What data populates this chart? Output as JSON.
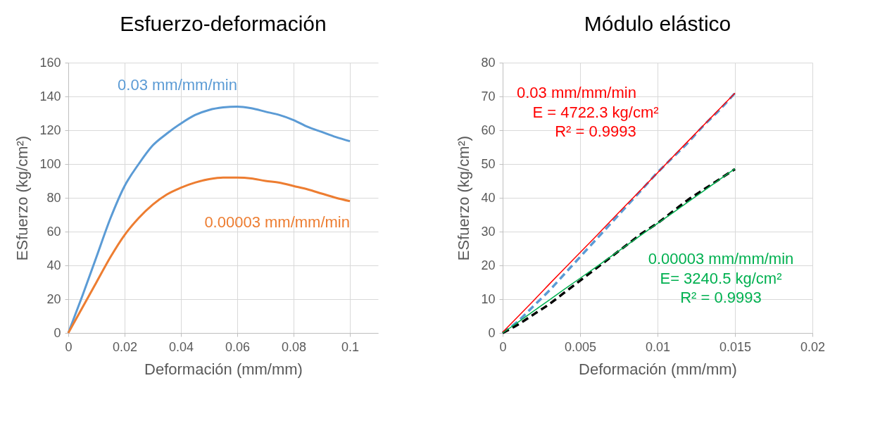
{
  "chart_data": [
    {
      "type": "line",
      "title": "Esfuerzo-deformación",
      "xlabel": "Deformación (mm/mm)",
      "ylabel": "ESfuerzo (kg/cm²)",
      "x": [
        0,
        0.005,
        0.01,
        0.015,
        0.02,
        0.025,
        0.03,
        0.035,
        0.04,
        0.045,
        0.05,
        0.055,
        0.06,
        0.065,
        0.07,
        0.075,
        0.08,
        0.085,
        0.09,
        0.095,
        0.1
      ],
      "series": [
        {
          "name": "0.03 mm/mm/min",
          "color": "#5b9bd5",
          "values": [
            0,
            22,
            45,
            68,
            87,
            100,
            111,
            118,
            124,
            129,
            132,
            133.5,
            134,
            133,
            131,
            129,
            126,
            122,
            119,
            116,
            113.5
          ]
        },
        {
          "name": "0.00003 mm/mm/min",
          "color": "#ed7d31",
          "values": [
            0,
            15,
            30,
            45,
            58,
            68,
            76,
            82,
            86,
            89,
            91,
            92,
            92,
            91.5,
            90,
            89,
            87,
            85,
            82.5,
            80,
            78
          ]
        }
      ],
      "xlim": [
        0,
        0.11
      ],
      "xticks": [
        0,
        0.02,
        0.04,
        0.06,
        0.08,
        0.1
      ],
      "ylim": [
        0,
        160
      ],
      "yticks": [
        0,
        20,
        40,
        60,
        80,
        100,
        120,
        140,
        160
      ],
      "grid": true,
      "legend": false,
      "line_style": "solid"
    },
    {
      "type": "line",
      "title": "Módulo elástico",
      "xlabel": "Deformación (mm/mm)",
      "ylabel": "ESfuerzo (kg/cm²)",
      "x": [
        0,
        0.001,
        0.002,
        0.003,
        0.004,
        0.005,
        0.006,
        0.007,
        0.008,
        0.009,
        0.01,
        0.011,
        0.012,
        0.013,
        0.014,
        0.015
      ],
      "series": [
        {
          "color": "#5b9bd5",
          "line_style": "dashed",
          "values": [
            0,
            3.5,
            8,
            12.5,
            17.5,
            22.5,
            27.5,
            32.5,
            37.5,
            42.5,
            47.5,
            52,
            56.5,
            61.5,
            66,
            71
          ]
        },
        {
          "color": "#000000",
          "line_style": "dashed",
          "values": [
            0,
            2.5,
            5.5,
            8.5,
            12,
            15.5,
            19,
            22.5,
            26,
            29.5,
            32.5,
            36,
            39.5,
            42.5,
            45.5,
            48.5
          ]
        },
        {
          "name": "0.03 mm/mm/min",
          "color": "#ff0000",
          "line_style": "solid",
          "values": [
            0.2,
            4.9,
            9.6,
            14.4,
            19.1,
            23.8,
            28.5,
            33.3,
            38,
            42.7,
            47.4,
            52.2,
            56.9,
            61.6,
            66.3,
            71
          ]
        },
        {
          "name": "0.00003 mm/mm/min",
          "color": "#00b050",
          "line_style": "solid",
          "values": [
            0,
            3.2,
            6.5,
            9.7,
            13,
            16.2,
            19.4,
            22.7,
            25.9,
            29.2,
            32.4,
            35.6,
            38.9,
            42.1,
            45.4,
            48.6
          ]
        }
      ],
      "annotations": [
        "E = 4722.3 kg/cm²",
        "R² = 0.9993",
        "E= 3240.5 kg/cm²",
        "R² = 0.9993"
      ],
      "xlim": [
        0,
        0.02
      ],
      "xticks": [
        0,
        0.005,
        0.01,
        0.015,
        0.02
      ],
      "ylim": [
        0,
        80
      ],
      "yticks": [
        0,
        10,
        20,
        30,
        40,
        50,
        60,
        70,
        80
      ],
      "grid": true,
      "legend": false
    }
  ]
}
